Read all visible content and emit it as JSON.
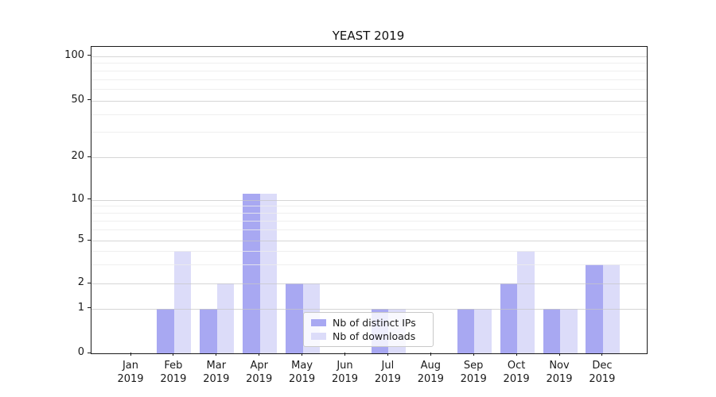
{
  "title": "YEAST 2019",
  "chart_data": {
    "type": "bar",
    "title": "YEAST 2019",
    "categories": [
      "Jan",
      "Feb",
      "Mar",
      "Apr",
      "May",
      "Jun",
      "Jul",
      "Aug",
      "Sep",
      "Oct",
      "Nov",
      "Dec"
    ],
    "year": "2019",
    "series": [
      {
        "name": "Nb of distinct IPs",
        "color": "#a8a8f2",
        "values": [
          0,
          1,
          1,
          11,
          2,
          0,
          1,
          0,
          1,
          2,
          1,
          3
        ]
      },
      {
        "name": "Nb of downloads",
        "color": "#dcdcf9",
        "values": [
          0,
          4,
          2,
          11,
          2,
          0,
          1,
          0,
          1,
          4,
          1,
          3
        ]
      }
    ],
    "ytick_labels": [
      "0",
      "1",
      "2",
      "5",
      "10",
      "20",
      "50",
      "100"
    ],
    "ytick_values": [
      0,
      1,
      2,
      5,
      10,
      20,
      50,
      100
    ],
    "minor_gridline_values": [
      3,
      4,
      6,
      7,
      8,
      9,
      30,
      40,
      60,
      70,
      80,
      90
    ],
    "ylim": [
      0,
      116
    ],
    "yscale": "symlog-like",
    "grid": true,
    "legend": {
      "position": "lower-center",
      "entries": [
        "Nb of distinct IPs",
        "Nb of downloads"
      ]
    },
    "colors": {
      "axis": "#1a1a1a",
      "grid_major": "#d4d4d4",
      "grid_minor": "#ececec",
      "background": "#ffffff"
    }
  }
}
